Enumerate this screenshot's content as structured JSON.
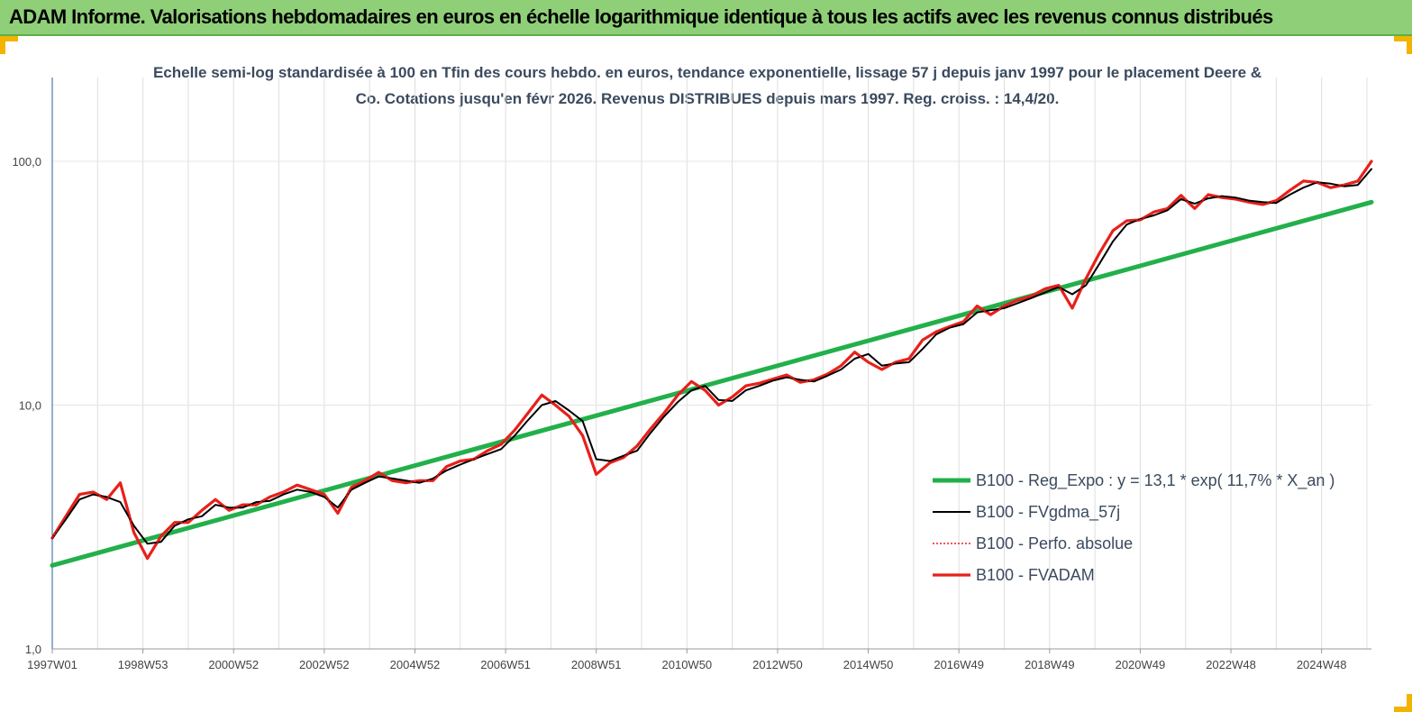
{
  "banner": {
    "title": "ADAM Informe. Valorisations hebdomadaires en euros en échelle logarithmique identique à tous les actifs avec les revenus connus distribués"
  },
  "colors": {
    "banner_bg": "#8fcf78",
    "corner_accent": "#f2b400",
    "reg_line": "#22b04b",
    "smoothed_line": "#000000",
    "perf_line": "#e8201a",
    "fvadam_line": "#e8201a"
  },
  "chart_data": {
    "type": "line",
    "title": "",
    "subtitle": "Echelle semi-log standardisée à 100 en Tfin des cours hebdo. en euros, tendance exponentielle, lissage 57 j depuis janv 1997 pour le placement Deere & Co. Cotations jusqu'en févr 2026. Revenus DISTRIBUES depuis mars 1997. Reg. croiss. : 14,4/20.",
    "xlabel": "",
    "ylabel": "",
    "y_scale": "log",
    "ylim": [
      1,
      200
    ],
    "xlim": [
      1997.0,
      2026.1
    ],
    "y_ticks": [
      {
        "value": 1,
        "label": "1,0"
      },
      {
        "value": 10,
        "label": "10,0"
      },
      {
        "value": 100,
        "label": "100,0"
      }
    ],
    "x_ticks": [
      {
        "value": 1997.0,
        "label": "1997W01"
      },
      {
        "value": 1999.0,
        "label": "1998W53"
      },
      {
        "value": 2001.0,
        "label": "2000W52"
      },
      {
        "value": 2003.0,
        "label": "2002W52"
      },
      {
        "value": 2005.0,
        "label": "2004W52"
      },
      {
        "value": 2007.0,
        "label": "2006W51"
      },
      {
        "value": 2009.0,
        "label": "2008W51"
      },
      {
        "value": 2011.0,
        "label": "2010W50"
      },
      {
        "value": 2013.0,
        "label": "2012W50"
      },
      {
        "value": 2015.0,
        "label": "2014W50"
      },
      {
        "value": 2017.0,
        "label": "2016W49"
      },
      {
        "value": 2019.0,
        "label": "2018W49"
      },
      {
        "value": 2021.0,
        "label": "2020W49"
      },
      {
        "value": 2023.0,
        "label": "2022W48"
      },
      {
        "value": 2025.0,
        "label": "2024W48"
      }
    ],
    "grid": "vertical",
    "legend_position": "bottom-right",
    "series": [
      {
        "name": "B100 - Reg_Expo : y = 13,1 * exp( 11,7% *  X_an )",
        "style": "thick-solid",
        "x": [
          1997.0,
          2026.1
        ],
        "y": [
          2.2,
          68
        ]
      },
      {
        "name": "B100 - FVgdma_57j",
        "style": "thin-solid",
        "x": [
          1997.0,
          1997.3,
          1997.6,
          1997.9,
          1998.2,
          1998.5,
          1998.8,
          1999.1,
          1999.4,
          1999.7,
          2000.0,
          2000.3,
          2000.6,
          2000.9,
          2001.2,
          2001.5,
          2001.8,
          2002.1,
          2002.4,
          2002.7,
          2003.0,
          2003.3,
          2003.6,
          2003.9,
          2004.2,
          2004.5,
          2004.8,
          2005.1,
          2005.4,
          2005.7,
          2006.0,
          2006.3,
          2006.6,
          2006.9,
          2007.2,
          2007.5,
          2007.8,
          2008.1,
          2008.4,
          2008.7,
          2009.0,
          2009.3,
          2009.6,
          2009.9,
          2010.2,
          2010.5,
          2010.8,
          2011.1,
          2011.4,
          2011.7,
          2012.0,
          2012.3,
          2012.6,
          2012.9,
          2013.2,
          2013.5,
          2013.8,
          2014.1,
          2014.4,
          2014.7,
          2015.0,
          2015.3,
          2015.6,
          2015.9,
          2016.2,
          2016.5,
          2016.8,
          2017.1,
          2017.4,
          2017.7,
          2018.0,
          2018.3,
          2018.6,
          2018.9,
          2019.2,
          2019.5,
          2019.8,
          2020.1,
          2020.4,
          2020.7,
          2021.0,
          2021.3,
          2021.6,
          2021.9,
          2022.2,
          2022.5,
          2022.8,
          2023.1,
          2023.4,
          2023.7,
          2024.0,
          2024.3,
          2024.6,
          2024.9,
          2025.2,
          2025.5,
          2025.8,
          2026.1
        ],
        "y": [
          2.85,
          3.4,
          4.1,
          4.3,
          4.2,
          4.0,
          3.2,
          2.7,
          2.75,
          3.2,
          3.4,
          3.5,
          3.9,
          3.8,
          3.8,
          4.0,
          4.05,
          4.3,
          4.5,
          4.4,
          4.2,
          3.8,
          4.5,
          4.8,
          5.1,
          5.0,
          4.9,
          4.8,
          5.0,
          5.4,
          5.7,
          6.0,
          6.3,
          6.6,
          7.5,
          8.7,
          10.0,
          10.4,
          9.5,
          8.6,
          6.0,
          5.9,
          6.2,
          6.5,
          7.7,
          9.0,
          10.3,
          11.5,
          12.0,
          10.5,
          10.4,
          11.5,
          12.0,
          12.6,
          13.0,
          12.7,
          12.5,
          13.2,
          14.0,
          15.5,
          16.2,
          14.5,
          14.8,
          15.0,
          17.0,
          19.5,
          20.8,
          21.5,
          24.0,
          24.5,
          25.0,
          26.2,
          27.5,
          29.0,
          30.5,
          28.5,
          31.0,
          38.0,
          47.0,
          55.0,
          58.0,
          60.0,
          63.0,
          70.0,
          67.0,
          70.5,
          72.0,
          71.0,
          69.0,
          68.0,
          67.5,
          73.0,
          78.0,
          82.0,
          81.0,
          79.0,
          80.0,
          93.0
        ]
      },
      {
        "name": "B100 - Perfo. absolue",
        "style": "dotted",
        "x": [
          1997.0,
          1997.3,
          1997.6,
          1997.9,
          1998.2,
          1998.5,
          1998.8,
          1999.1,
          1999.4,
          1999.7,
          2000.0,
          2000.3,
          2000.6,
          2000.9,
          2001.2,
          2001.5,
          2001.8,
          2002.1,
          2002.4,
          2002.7,
          2003.0,
          2003.3,
          2003.6,
          2003.9,
          2004.2,
          2004.5,
          2004.8,
          2005.1,
          2005.4,
          2005.7,
          2006.0,
          2006.3,
          2006.6,
          2006.9,
          2007.2,
          2007.5,
          2007.8,
          2008.1,
          2008.4,
          2008.7,
          2009.0,
          2009.3,
          2009.6,
          2009.9,
          2010.2,
          2010.5,
          2010.8,
          2011.1,
          2011.4,
          2011.7,
          2012.0,
          2012.3,
          2012.6,
          2012.9,
          2013.2,
          2013.5,
          2013.8,
          2014.1,
          2014.4,
          2014.7,
          2015.0,
          2015.3,
          2015.6,
          2015.9,
          2016.2,
          2016.5,
          2016.8,
          2017.1,
          2017.4,
          2017.7,
          2018.0,
          2018.3,
          2018.6,
          2018.9,
          2019.2,
          2019.5,
          2019.8,
          2020.1,
          2020.4,
          2020.7,
          2021.0,
          2021.3,
          2021.6,
          2021.9,
          2022.2,
          2022.5,
          2022.8,
          2023.1,
          2023.4,
          2023.7,
          2024.0,
          2024.3,
          2024.6,
          2024.9,
          2025.2,
          2025.5,
          2025.8,
          2026.1
        ],
        "y": [
          2.85,
          3.5,
          4.3,
          4.4,
          4.1,
          4.8,
          3.0,
          2.35,
          2.9,
          3.3,
          3.3,
          3.7,
          4.1,
          3.7,
          3.9,
          3.9,
          4.2,
          4.4,
          4.7,
          4.5,
          4.3,
          3.6,
          4.6,
          4.9,
          5.3,
          4.9,
          4.8,
          4.9,
          4.9,
          5.6,
          5.9,
          6.0,
          6.5,
          6.9,
          7.9,
          9.3,
          11.0,
          10.0,
          9.0,
          7.5,
          5.2,
          5.8,
          6.1,
          6.8,
          8.0,
          9.3,
          11.0,
          12.5,
          11.5,
          10.0,
          10.8,
          12.0,
          12.3,
          12.8,
          13.3,
          12.4,
          12.7,
          13.4,
          14.5,
          16.5,
          15.0,
          14.0,
          15.0,
          15.5,
          18.5,
          20.0,
          21.0,
          22.0,
          25.5,
          23.5,
          25.5,
          27.0,
          28.0,
          30.0,
          31.0,
          25.0,
          33.0,
          42.0,
          52.0,
          57.0,
          57.5,
          62.0,
          64.0,
          72.5,
          64.0,
          73.0,
          71.0,
          70.0,
          68.0,
          66.5,
          69.0,
          76.0,
          83.0,
          82.0,
          78.0,
          80.0,
          83.0,
          100.0
        ]
      },
      {
        "name": "B100 - FVADAM",
        "style": "thick-solid",
        "x": [
          1997.0,
          1997.3,
          1997.6,
          1997.9,
          1998.2,
          1998.5,
          1998.8,
          1999.1,
          1999.4,
          1999.7,
          2000.0,
          2000.3,
          2000.6,
          2000.9,
          2001.2,
          2001.5,
          2001.8,
          2002.1,
          2002.4,
          2002.7,
          2003.0,
          2003.3,
          2003.6,
          2003.9,
          2004.2,
          2004.5,
          2004.8,
          2005.1,
          2005.4,
          2005.7,
          2006.0,
          2006.3,
          2006.6,
          2006.9,
          2007.2,
          2007.5,
          2007.8,
          2008.1,
          2008.4,
          2008.7,
          2009.0,
          2009.3,
          2009.6,
          2009.9,
          2010.2,
          2010.5,
          2010.8,
          2011.1,
          2011.4,
          2011.7,
          2012.0,
          2012.3,
          2012.6,
          2012.9,
          2013.2,
          2013.5,
          2013.8,
          2014.1,
          2014.4,
          2014.7,
          2015.0,
          2015.3,
          2015.6,
          2015.9,
          2016.2,
          2016.5,
          2016.8,
          2017.1,
          2017.4,
          2017.7,
          2018.0,
          2018.3,
          2018.6,
          2018.9,
          2019.2,
          2019.5,
          2019.8,
          2020.1,
          2020.4,
          2020.7,
          2021.0,
          2021.3,
          2021.6,
          2021.9,
          2022.2,
          2022.5,
          2022.8,
          2023.1,
          2023.4,
          2023.7,
          2024.0,
          2024.3,
          2024.6,
          2024.9,
          2025.2,
          2025.5,
          2025.8,
          2026.1
        ],
        "y": [
          2.85,
          3.5,
          4.3,
          4.4,
          4.1,
          4.8,
          3.0,
          2.35,
          2.9,
          3.3,
          3.3,
          3.7,
          4.1,
          3.7,
          3.9,
          3.9,
          4.2,
          4.4,
          4.7,
          4.5,
          4.3,
          3.6,
          4.6,
          4.9,
          5.3,
          4.9,
          4.8,
          4.9,
          4.9,
          5.6,
          5.9,
          6.0,
          6.5,
          6.9,
          7.9,
          9.3,
          11.0,
          10.0,
          9.0,
          7.5,
          5.2,
          5.8,
          6.1,
          6.8,
          8.0,
          9.3,
          11.0,
          12.5,
          11.5,
          10.0,
          10.8,
          12.0,
          12.3,
          12.8,
          13.3,
          12.4,
          12.7,
          13.4,
          14.5,
          16.5,
          15.0,
          14.0,
          15.0,
          15.5,
          18.5,
          20.0,
          21.0,
          22.0,
          25.5,
          23.5,
          25.5,
          27.0,
          28.0,
          30.0,
          31.0,
          25.0,
          33.0,
          42.0,
          52.0,
          57.0,
          57.5,
          62.0,
          64.0,
          72.5,
          64.0,
          73.0,
          71.0,
          70.0,
          68.0,
          66.5,
          69.0,
          76.0,
          83.0,
          82.0,
          78.0,
          80.0,
          83.0,
          100.0
        ]
      }
    ]
  }
}
